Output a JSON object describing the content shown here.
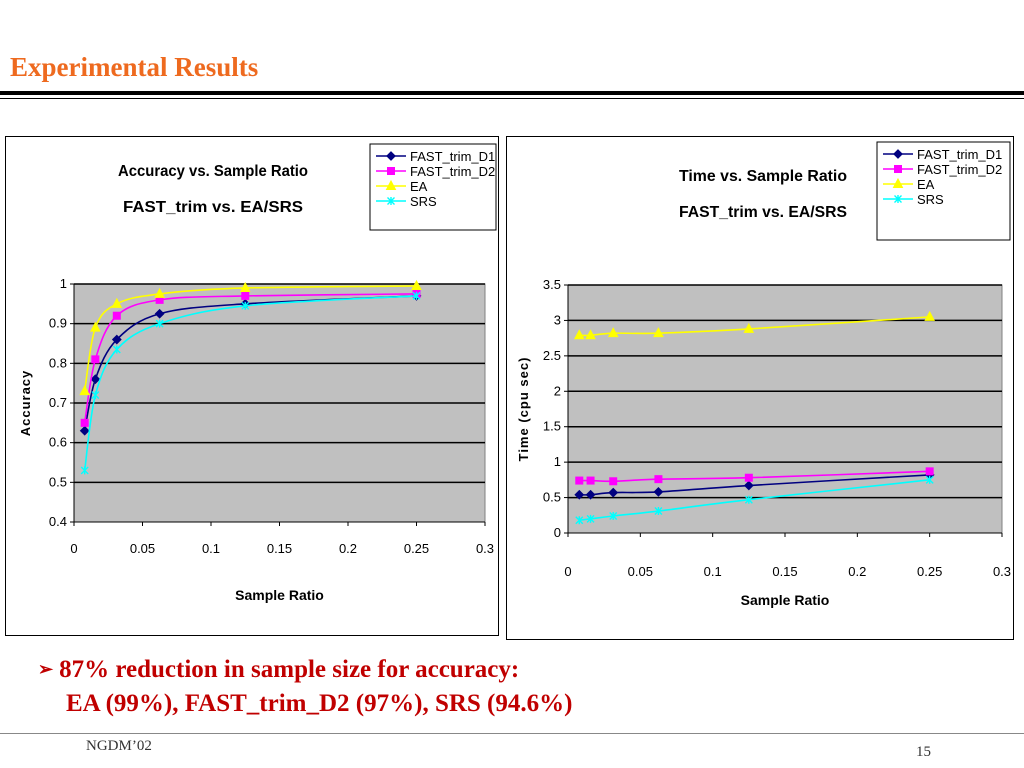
{
  "slide": {
    "title": "Experimental Results",
    "bullet_line1": "87% reduction in sample size for accuracy:",
    "bullet_line2": "EA (99%), FAST_trim_D2 (97%), SRS (94.6%)",
    "footer_left": "NGDM’02",
    "page_number": "15"
  },
  "colors": {
    "title": "#ee6a1f",
    "bullet": "#c00000",
    "plot_background": "#c0c0c0",
    "FAST_trim_D1": "#000080",
    "FAST_trim_D2": "#ff00ff",
    "EA": "#ffff00",
    "SRS": "#00ffff"
  },
  "chart_data": [
    {
      "type": "line",
      "title_line1": "Accuracy vs. Sample Ratio",
      "title_line2": "FAST_trim    vs.    EA/SRS",
      "xlabel": "Sample Ratio",
      "ylabel": "Accuracy",
      "xlim": [
        0,
        0.3
      ],
      "ylim": [
        0.4,
        1
      ],
      "x_ticks": [
        "0",
        "0.05",
        "0.1",
        "0.15",
        "0.2",
        "0.25",
        "0.3"
      ],
      "y_ticks": [
        "0.4",
        "0.5",
        "0.6",
        "0.7",
        "0.8",
        "0.9",
        "1"
      ],
      "grid": "horizontal",
      "legend": "top-right",
      "x": [
        0.0078,
        0.0156,
        0.03125,
        0.0625,
        0.125,
        0.25
      ],
      "series": [
        {
          "name": "FAST_trim_D1",
          "values": [
            0.63,
            0.76,
            0.86,
            0.925,
            0.95,
            0.97
          ]
        },
        {
          "name": "FAST_trim_D2",
          "values": [
            0.65,
            0.81,
            0.92,
            0.96,
            0.97,
            0.975
          ]
        },
        {
          "name": "EA",
          "values": [
            0.73,
            0.89,
            0.95,
            0.975,
            0.99,
            0.995
          ]
        },
        {
          "name": "SRS",
          "values": [
            0.53,
            0.72,
            0.835,
            0.9,
            0.945,
            0.97
          ]
        }
      ]
    },
    {
      "type": "line",
      "title_line1": "Time vs. Sample Ratio",
      "title_line2": "FAST_trim vs. EA/SRS",
      "xlabel": "Sample Ratio",
      "ylabel": "Time (cpu sec)",
      "xlim": [
        0,
        0.3
      ],
      "ylim": [
        0,
        3.5
      ],
      "x_ticks": [
        "0",
        "0.05",
        "0.1",
        "0.15",
        "0.2",
        "0.25",
        "0.3"
      ],
      "y_ticks": [
        "0",
        "0.5",
        "1",
        "1.5",
        "2",
        "2.5",
        "3",
        "3.5"
      ],
      "grid": "horizontal",
      "legend": "top-right",
      "x": [
        0.0078,
        0.0156,
        0.03125,
        0.0625,
        0.125,
        0.25
      ],
      "series": [
        {
          "name": "FAST_trim_D1",
          "values": [
            0.54,
            0.54,
            0.57,
            0.58,
            0.67,
            0.82
          ]
        },
        {
          "name": "FAST_trim_D2",
          "values": [
            0.74,
            0.74,
            0.73,
            0.76,
            0.78,
            0.87
          ]
        },
        {
          "name": "EA",
          "values": [
            2.79,
            2.79,
            2.82,
            2.82,
            2.88,
            3.05
          ]
        },
        {
          "name": "SRS",
          "values": [
            0.18,
            0.2,
            0.24,
            0.31,
            0.47,
            0.75
          ]
        }
      ]
    }
  ]
}
